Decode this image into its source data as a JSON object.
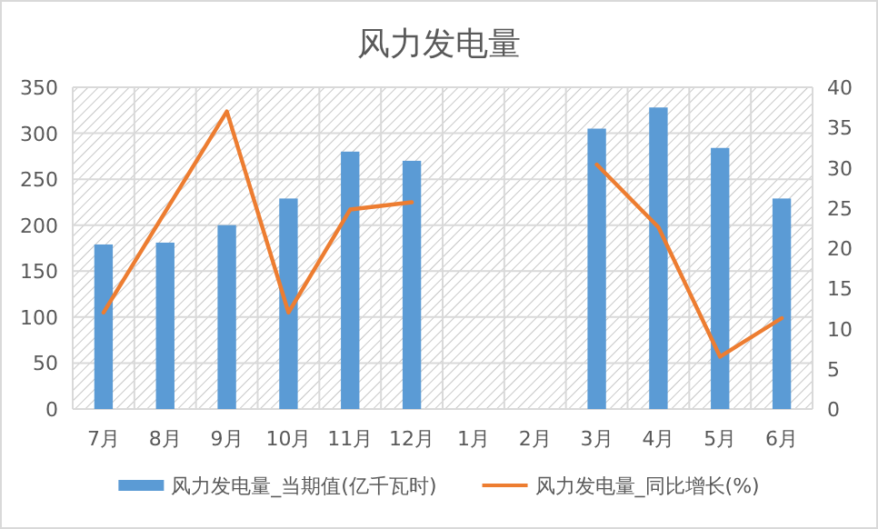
{
  "chart_data": {
    "type": "bar",
    "title": "风力发电量",
    "categories": [
      "7月",
      "8月",
      "9月",
      "10月",
      "11月",
      "12月",
      "1月",
      "2月",
      "3月",
      "4月",
      "5月",
      "6月"
    ],
    "series": [
      {
        "name": "风力发电量_当期值(亿千瓦时)",
        "color": "#5b9bd5",
        "values": [
          179,
          181,
          200,
          229,
          280,
          270,
          null,
          null,
          305,
          328,
          284,
          229
        ]
      },
      {
        "name": "风力发电量_同比增长(%)",
        "type": "line",
        "axis": "y2",
        "color": "#ed7d31",
        "values": [
          12,
          24.5,
          37,
          12,
          24.8,
          25.7,
          null,
          null,
          30.4,
          22.6,
          6.5,
          11.3
        ]
      }
    ],
    "ylim": [
      0,
      350
    ],
    "yticks": [
      0,
      50,
      100,
      150,
      200,
      250,
      300,
      350
    ],
    "y2lim": [
      0,
      40
    ],
    "y2ticks": [
      0,
      5,
      10,
      15,
      20,
      25,
      30,
      35,
      40
    ],
    "grid": true,
    "legend": "bottom"
  }
}
